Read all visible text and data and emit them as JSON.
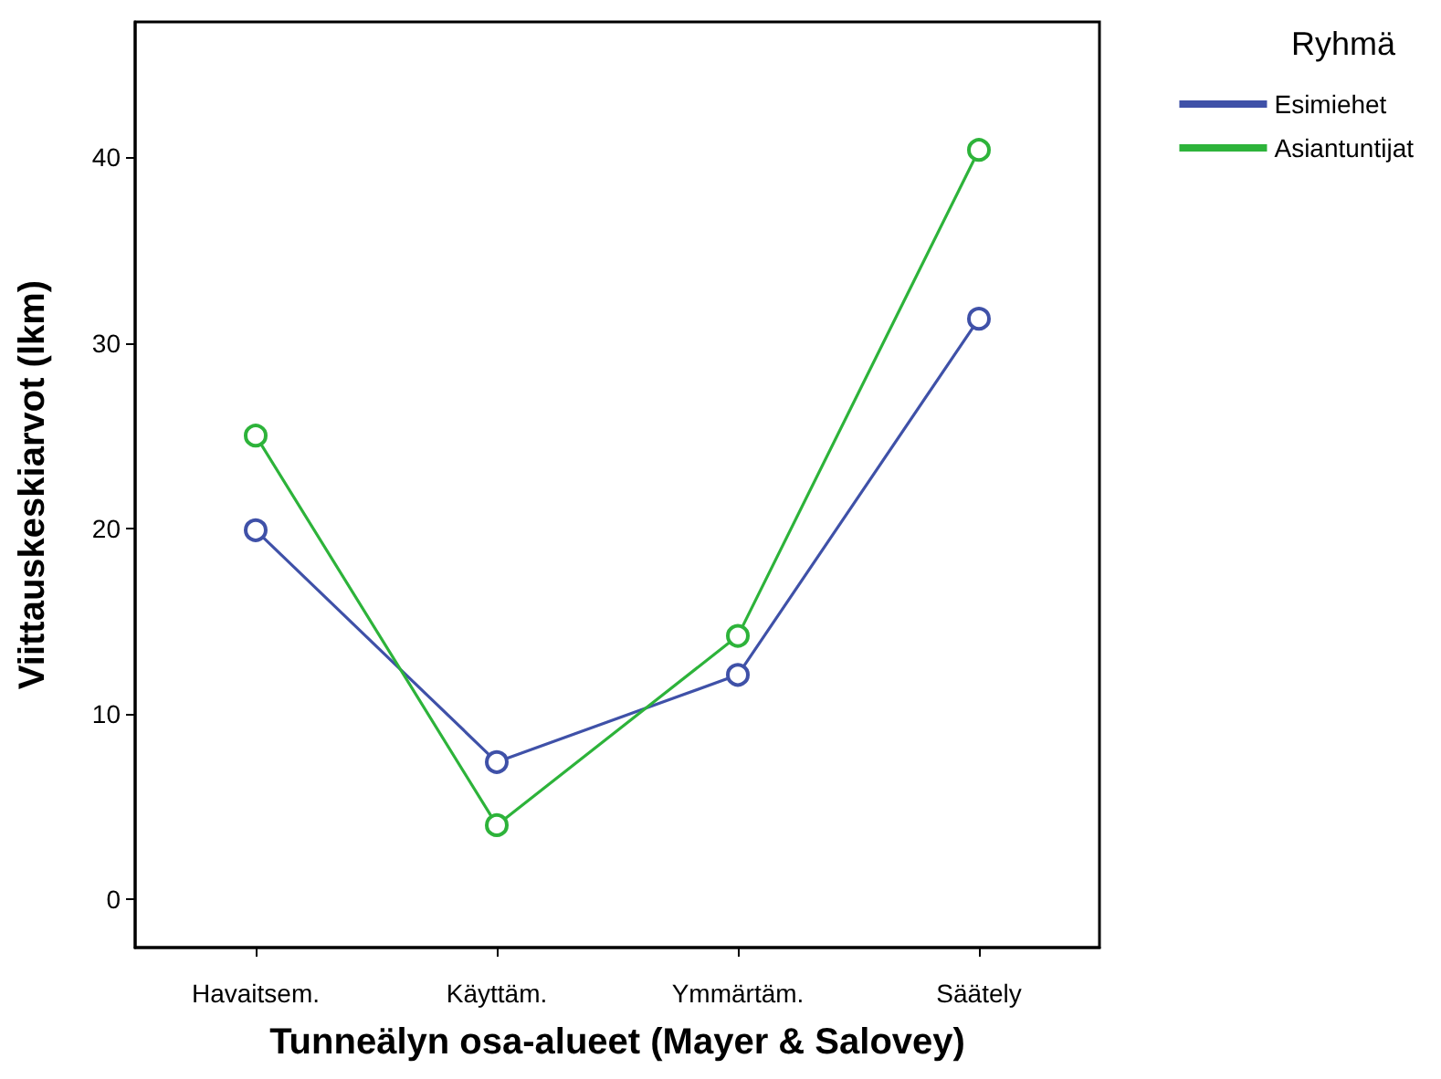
{
  "chart_data": {
    "type": "line",
    "xlabel": "Tunneälyn osa-alueet (Mayer & Salovey)",
    "ylabel": "Viittauskeskiarvot (lkm)",
    "legend_title": "Ryhmä",
    "categories": [
      "Havaitsem.",
      "Käyttäm.",
      "Ymmärtäm.",
      "Säätely"
    ],
    "series": [
      {
        "name": "Esimiehet",
        "color": "#3f51a8",
        "values": [
          19.9,
          7.4,
          12.1,
          31.3
        ]
      },
      {
        "name": "Asiantuntijat",
        "color": "#2db33a",
        "values": [
          25.0,
          4.0,
          14.2,
          40.4
        ]
      }
    ],
    "ylim": [
      -2.6,
      47.3
    ],
    "yticks": [
      0,
      10,
      20,
      30,
      40
    ],
    "grid": false,
    "legend": "right",
    "marker": "circle",
    "line_style": "solid"
  }
}
